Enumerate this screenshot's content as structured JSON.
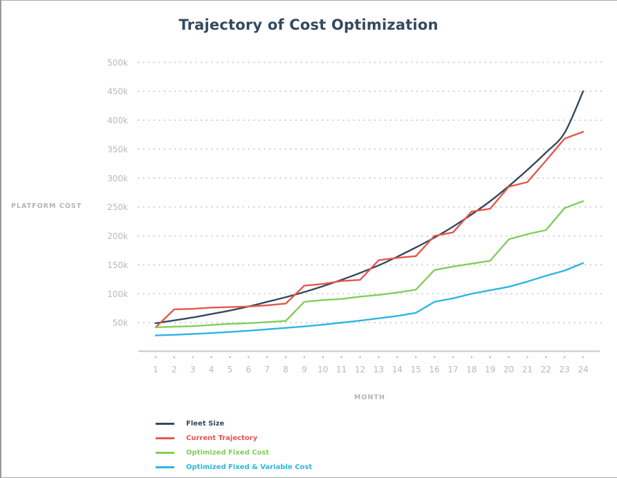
{
  "chart_data": {
    "type": "line",
    "title": "Trajectory of Cost Optimization",
    "xlabel": "MONTH",
    "ylabel": "PLATFORM COST",
    "x": [
      1,
      2,
      3,
      4,
      5,
      6,
      7,
      8,
      9,
      10,
      11,
      12,
      13,
      14,
      15,
      16,
      17,
      18,
      19,
      20,
      21,
      22,
      23,
      24
    ],
    "x_tick_labels": [
      "1",
      "2",
      "3",
      "4",
      "5",
      "6",
      "7",
      "8",
      "9",
      "10",
      "11",
      "12",
      "13",
      "14",
      "15",
      "16",
      "17",
      "18",
      "19",
      "20",
      "21",
      "22",
      "23",
      "24"
    ],
    "ylim": [
      0,
      500000
    ],
    "y_ticks": [
      50000,
      100000,
      150000,
      200000,
      250000,
      300000,
      350000,
      400000,
      450000,
      500000
    ],
    "y_tick_labels": [
      "50k",
      "100k",
      "150k",
      "200k",
      "250k",
      "300k",
      "350k",
      "400k",
      "450k",
      "500k"
    ],
    "grid": "horizontal-dotted",
    "legend_position": "bottom-left",
    "series": [
      {
        "name": "Fleet Size",
        "color": "#34495e",
        "smooth": true,
        "values": [
          49000,
          54000,
          59000,
          65000,
          71000,
          78000,
          86000,
          94000,
          103000,
          113000,
          124000,
          136000,
          149000,
          164000,
          180000,
          197000,
          216000,
          237000,
          260000,
          286000,
          314000,
          344000,
          378000,
          450000
        ]
      },
      {
        "name": "Current Trajectory",
        "color": "#e8554a",
        "smooth": false,
        "values": [
          42000,
          73000,
          74000,
          76000,
          77000,
          78000,
          80000,
          83000,
          114000,
          117000,
          122000,
          124000,
          158000,
          162000,
          165000,
          200000,
          206000,
          242000,
          247000,
          285000,
          293000,
          330000,
          368000,
          380000
        ]
      },
      {
        "name": "Optimized Fixed Cost",
        "color": "#82cd5a",
        "smooth": false,
        "values": [
          42000,
          43000,
          44000,
          46000,
          48000,
          49000,
          51000,
          53000,
          86000,
          89000,
          91000,
          95000,
          98000,
          102000,
          107000,
          141000,
          147000,
          152000,
          157000,
          194000,
          203000,
          210000,
          248000,
          260000
        ]
      },
      {
        "name": "Optimized Fixed & Variable Cost",
        "color": "#2bb5e3",
        "smooth": false,
        "values": [
          28000,
          29000,
          30500,
          32000,
          34000,
          36000,
          38500,
          41000,
          43500,
          46500,
          50000,
          53500,
          57500,
          61500,
          67000,
          86000,
          92000,
          100000,
          106000,
          112000,
          121000,
          131000,
          140000,
          153000
        ]
      }
    ]
  }
}
